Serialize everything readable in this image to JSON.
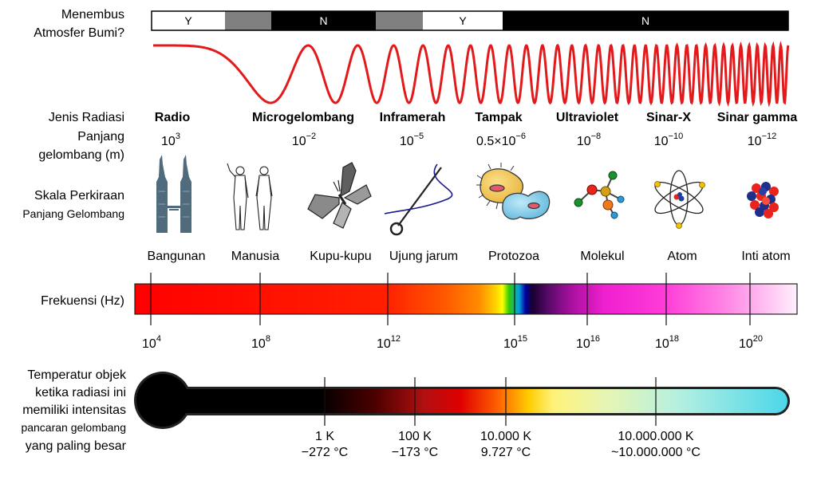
{
  "row_labels": {
    "atmosphere": [
      "Menembus",
      "Atmosfer Bumi?"
    ],
    "radiation_type": "Jenis Radiasi",
    "wavelength": [
      "Panjang",
      "gelombang (m)"
    ],
    "scale": [
      "Skala Perkiraan",
      "Panjang Gelombang"
    ],
    "frequency": "Frekuensi (Hz)",
    "temperature": [
      "Temperatur objek",
      "ketika radiasi ini",
      "memiliki intensitas",
      "pancaran gelombang",
      "yang paling besar"
    ]
  },
  "atmosphere_bar": [
    {
      "label": "Y",
      "kind": "yes"
    },
    {
      "label": "",
      "kind": "partial"
    },
    {
      "label": "N",
      "kind": "no"
    },
    {
      "label": "",
      "kind": "partial"
    },
    {
      "label": "Y",
      "kind": "yes"
    },
    {
      "label": "N",
      "kind": "no"
    }
  ],
  "radiation_types": [
    "Radio",
    "Microgelombang",
    "Inframerah",
    "Tampak",
    "Ultraviolet",
    "Sinar-X",
    "Sinar gamma"
  ],
  "wavelengths": [
    {
      "base": "10",
      "exp": "3"
    },
    {
      "base": "10",
      "exp": "−2"
    },
    {
      "base": "10",
      "exp": "−5"
    },
    {
      "base": "0.5×10",
      "exp": "−6"
    },
    {
      "base": "10",
      "exp": "−8"
    },
    {
      "base": "10",
      "exp": "−10"
    },
    {
      "base": "10",
      "exp": "−12"
    }
  ],
  "scale_objects": [
    {
      "label": "Bangunan",
      "icon": "towers-icon"
    },
    {
      "label": "Manusia",
      "icon": "humans-icon"
    },
    {
      "label": "Kupu-kupu",
      "icon": "butterfly-icon"
    },
    {
      "label": "Ujung jarum",
      "icon": "needle-icon"
    },
    {
      "label": "Protozoa",
      "icon": "protozoa-icon"
    },
    {
      "label": "Molekul",
      "icon": "molecule-icon"
    },
    {
      "label": "Atom",
      "icon": "atom-icon"
    },
    {
      "label": "Inti atom",
      "icon": "nucleus-icon"
    }
  ],
  "frequency_ticks": [
    {
      "base": "10",
      "exp": "4"
    },
    {
      "base": "10",
      "exp": "8"
    },
    {
      "base": "10",
      "exp": "12"
    },
    {
      "base": "10",
      "exp": "15"
    },
    {
      "base": "10",
      "exp": "16"
    },
    {
      "base": "10",
      "exp": "18"
    },
    {
      "base": "10",
      "exp": "20"
    }
  ],
  "temperature_ticks": [
    {
      "kelvin": "1 K",
      "celsius": "−272 °C"
    },
    {
      "kelvin": "100 K",
      "celsius": "−173 °C"
    },
    {
      "kelvin": "10.000 K",
      "celsius": "9.727 °C"
    },
    {
      "kelvin": "10.000.000 K",
      "celsius": "~10.000.000 °C"
    }
  ],
  "colors": {
    "wave": "#e31a1c",
    "partial": "#808080"
  }
}
